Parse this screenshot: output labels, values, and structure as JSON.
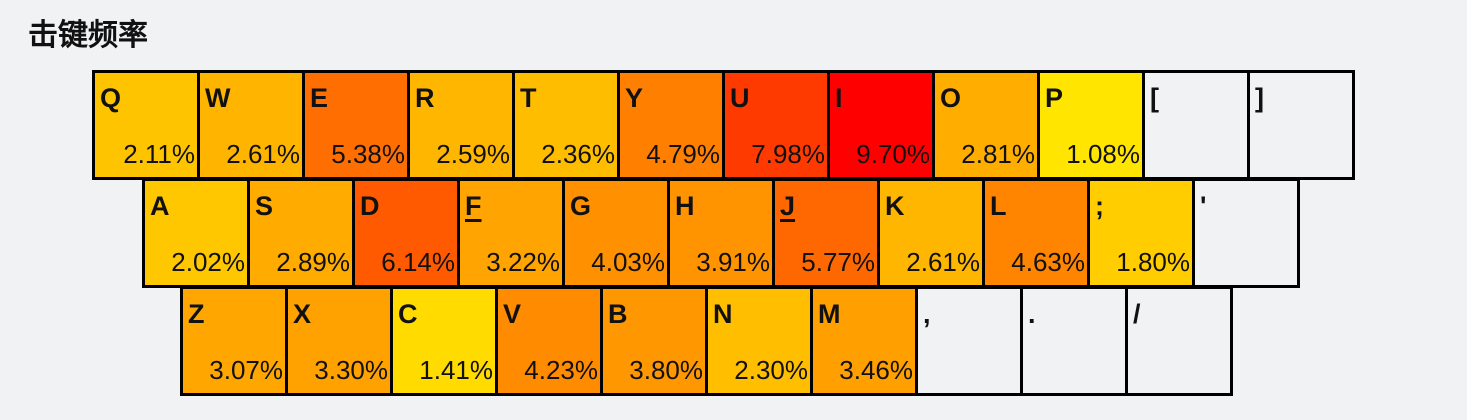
{
  "title": "击键频率",
  "rows": [
    [
      {
        "key": "Q",
        "pct": "2.11%",
        "value": 2.11,
        "color": "#ffc400"
      },
      {
        "key": "W",
        "pct": "2.61%",
        "value": 2.61,
        "color": "#ffb500"
      },
      {
        "key": "E",
        "pct": "5.38%",
        "value": 5.38,
        "color": "#ff6e00"
      },
      {
        "key": "R",
        "pct": "2.59%",
        "value": 2.59,
        "color": "#ffb600"
      },
      {
        "key": "T",
        "pct": "2.36%",
        "value": 2.36,
        "color": "#ffbd00"
      },
      {
        "key": "Y",
        "pct": "4.79%",
        "value": 4.79,
        "color": "#ff8000"
      },
      {
        "key": "U",
        "pct": "7.98%",
        "value": 7.98,
        "color": "#ff3a00"
      },
      {
        "key": "I",
        "pct": "9.70%",
        "value": 9.7,
        "color": "#ff0000"
      },
      {
        "key": "O",
        "pct": "2.81%",
        "value": 2.81,
        "color": "#ffae00"
      },
      {
        "key": "P",
        "pct": "1.08%",
        "value": 1.08,
        "color": "#ffe500"
      },
      {
        "key": "[",
        "pct": "",
        "value": null,
        "color": "#f1f2f4"
      },
      {
        "key": "]",
        "pct": "",
        "value": null,
        "color": "#f1f2f4"
      }
    ],
    [
      {
        "key": "A",
        "pct": "2.02%",
        "value": 2.02,
        "color": "#ffc700"
      },
      {
        "key": "S",
        "pct": "2.89%",
        "value": 2.89,
        "color": "#ffab00"
      },
      {
        "key": "D",
        "pct": "6.14%",
        "value": 6.14,
        "color": "#ff5a00"
      },
      {
        "key": "F",
        "pct": "3.22%",
        "value": 3.22,
        "color": "#ffa400",
        "underline": true
      },
      {
        "key": "G",
        "pct": "4.03%",
        "value": 4.03,
        "color": "#ff9000"
      },
      {
        "key": "H",
        "pct": "3.91%",
        "value": 3.91,
        "color": "#ff9300"
      },
      {
        "key": "J",
        "pct": "5.77%",
        "value": 5.77,
        "color": "#ff6700",
        "underline": true
      },
      {
        "key": "K",
        "pct": "2.61%",
        "value": 2.61,
        "color": "#ffb600"
      },
      {
        "key": "L",
        "pct": "4.63%",
        "value": 4.63,
        "color": "#ff8400"
      },
      {
        "key": ";",
        "pct": "1.80%",
        "value": 1.8,
        "color": "#ffcd00"
      },
      {
        "key": "'",
        "pct": "",
        "value": null,
        "color": "#f1f2f4"
      }
    ],
    [
      {
        "key": "Z",
        "pct": "3.07%",
        "value": 3.07,
        "color": "#ffa700"
      },
      {
        "key": "X",
        "pct": "3.30%",
        "value": 3.3,
        "color": "#ffa200"
      },
      {
        "key": "C",
        "pct": "1.41%",
        "value": 1.41,
        "color": "#ffdb00"
      },
      {
        "key": "V",
        "pct": "4.23%",
        "value": 4.23,
        "color": "#ff8c00"
      },
      {
        "key": "B",
        "pct": "3.80%",
        "value": 3.8,
        "color": "#ff9700"
      },
      {
        "key": "N",
        "pct": "2.30%",
        "value": 2.3,
        "color": "#ffbf00"
      },
      {
        "key": "M",
        "pct": "3.46%",
        "value": 3.46,
        "color": "#ff9f00"
      },
      {
        "key": ",",
        "pct": "",
        "value": null,
        "color": "#f1f2f4"
      },
      {
        "key": ".",
        "pct": "",
        "value": null,
        "color": "#f1f2f4"
      },
      {
        "key": "/",
        "pct": "",
        "value": null,
        "color": "#f1f2f4"
      }
    ]
  ]
}
